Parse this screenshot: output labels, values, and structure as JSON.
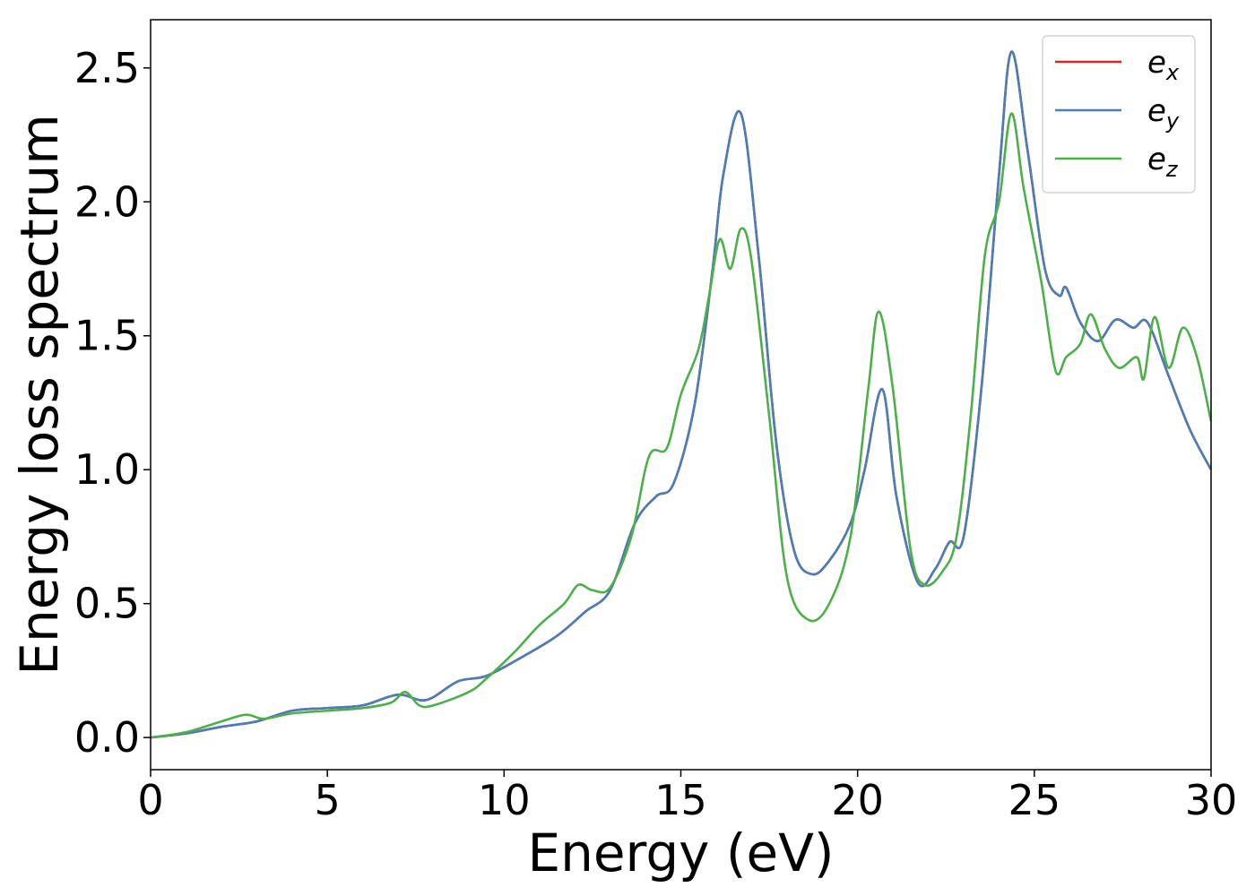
{
  "chart_data": {
    "type": "line",
    "title": "",
    "xlabel": "Energy (eV)",
    "ylabel": "Energy loss spectrum",
    "xlim": [
      0,
      30
    ],
    "ylim": [
      -0.12,
      2.68
    ],
    "xticks": [
      0,
      5,
      10,
      15,
      20,
      25,
      30
    ],
    "xtick_labels": [
      "0",
      "5",
      "10",
      "15",
      "20",
      "25",
      "30"
    ],
    "yticks": [
      0.0,
      0.5,
      1.0,
      1.5,
      2.0,
      2.5
    ],
    "ytick_labels": [
      "0.0",
      "0.5",
      "1.0",
      "1.5",
      "2.0",
      "2.5"
    ],
    "grid": false,
    "legend_position": "top-right",
    "series": [
      {
        "name": "e_x",
        "label_base": "e",
        "label_sub": "x",
        "color": "#d62728",
        "points": [
          [
            0,
            0
          ],
          [
            1,
            0.015
          ],
          [
            2,
            0.04
          ],
          [
            3,
            0.06
          ],
          [
            4,
            0.1
          ],
          [
            5,
            0.11
          ],
          [
            6,
            0.12
          ],
          [
            7,
            0.16
          ],
          [
            7.8,
            0.14
          ],
          [
            8.7,
            0.21
          ],
          [
            9.5,
            0.23
          ],
          [
            10.5,
            0.3
          ],
          [
            11.5,
            0.38
          ],
          [
            12.3,
            0.47
          ],
          [
            13,
            0.55
          ],
          [
            13.7,
            0.8
          ],
          [
            14.3,
            0.9
          ],
          [
            14.8,
            0.95
          ],
          [
            15.4,
            1.25
          ],
          [
            15.9,
            1.75
          ],
          [
            16.2,
            2.1
          ],
          [
            16.7,
            2.33
          ],
          [
            17.2,
            1.8
          ],
          [
            17.7,
            1.1
          ],
          [
            18.2,
            0.7
          ],
          [
            18.7,
            0.61
          ],
          [
            19.2,
            0.66
          ],
          [
            19.8,
            0.8
          ],
          [
            20.2,
            1.0
          ],
          [
            20.7,
            1.3
          ],
          [
            21.1,
            0.9
          ],
          [
            21.7,
            0.58
          ],
          [
            22.2,
            0.63
          ],
          [
            22.6,
            0.73
          ],
          [
            23,
            0.75
          ],
          [
            23.5,
            1.3
          ],
          [
            24,
            2.1
          ],
          [
            24.35,
            2.56
          ],
          [
            24.8,
            2.2
          ],
          [
            25.3,
            1.75
          ],
          [
            25.7,
            1.65
          ],
          [
            25.9,
            1.68
          ],
          [
            26.3,
            1.55
          ],
          [
            26.8,
            1.48
          ],
          [
            27.3,
            1.56
          ],
          [
            27.8,
            1.53
          ],
          [
            28.2,
            1.55
          ],
          [
            28.8,
            1.35
          ],
          [
            29.4,
            1.15
          ],
          [
            30,
            1.0
          ]
        ]
      },
      {
        "name": "e_y",
        "label_base": "e",
        "label_sub": "y",
        "color": "#4a7eb5",
        "points": [
          [
            0,
            0
          ],
          [
            1,
            0.015
          ],
          [
            2,
            0.04
          ],
          [
            3,
            0.06
          ],
          [
            4,
            0.1
          ],
          [
            5,
            0.11
          ],
          [
            6,
            0.12
          ],
          [
            7,
            0.16
          ],
          [
            7.8,
            0.14
          ],
          [
            8.7,
            0.21
          ],
          [
            9.5,
            0.23
          ],
          [
            10.5,
            0.3
          ],
          [
            11.5,
            0.38
          ],
          [
            12.3,
            0.47
          ],
          [
            13,
            0.55
          ],
          [
            13.7,
            0.8
          ],
          [
            14.3,
            0.9
          ],
          [
            14.8,
            0.95
          ],
          [
            15.4,
            1.25
          ],
          [
            15.9,
            1.75
          ],
          [
            16.2,
            2.1
          ],
          [
            16.7,
            2.33
          ],
          [
            17.2,
            1.8
          ],
          [
            17.7,
            1.1
          ],
          [
            18.2,
            0.7
          ],
          [
            18.7,
            0.61
          ],
          [
            19.2,
            0.66
          ],
          [
            19.8,
            0.8
          ],
          [
            20.2,
            1.0
          ],
          [
            20.7,
            1.3
          ],
          [
            21.1,
            0.9
          ],
          [
            21.7,
            0.58
          ],
          [
            22.2,
            0.63
          ],
          [
            22.6,
            0.73
          ],
          [
            23,
            0.75
          ],
          [
            23.5,
            1.3
          ],
          [
            24,
            2.1
          ],
          [
            24.35,
            2.56
          ],
          [
            24.8,
            2.2
          ],
          [
            25.3,
            1.75
          ],
          [
            25.7,
            1.65
          ],
          [
            25.9,
            1.68
          ],
          [
            26.3,
            1.55
          ],
          [
            26.8,
            1.48
          ],
          [
            27.3,
            1.56
          ],
          [
            27.8,
            1.53
          ],
          [
            28.2,
            1.55
          ],
          [
            28.8,
            1.35
          ],
          [
            29.4,
            1.15
          ],
          [
            30,
            1.0
          ]
        ]
      },
      {
        "name": "e_z",
        "label_base": "e",
        "label_sub": "z",
        "color": "#4daf4a",
        "points": [
          [
            0,
            0
          ],
          [
            1,
            0.02
          ],
          [
            2,
            0.06
          ],
          [
            2.7,
            0.085
          ],
          [
            3.2,
            0.07
          ],
          [
            4,
            0.09
          ],
          [
            5,
            0.1
          ],
          [
            6,
            0.11
          ],
          [
            6.8,
            0.13
          ],
          [
            7.2,
            0.17
          ],
          [
            7.6,
            0.12
          ],
          [
            8,
            0.12
          ],
          [
            9,
            0.17
          ],
          [
            9.5,
            0.22
          ],
          [
            10.3,
            0.32
          ],
          [
            11,
            0.42
          ],
          [
            11.7,
            0.5
          ],
          [
            12.1,
            0.57
          ],
          [
            12.5,
            0.55
          ],
          [
            13,
            0.56
          ],
          [
            13.6,
            0.75
          ],
          [
            14.1,
            1.05
          ],
          [
            14.6,
            1.08
          ],
          [
            15,
            1.28
          ],
          [
            15.5,
            1.45
          ],
          [
            15.8,
            1.65
          ],
          [
            16.1,
            1.86
          ],
          [
            16.4,
            1.75
          ],
          [
            16.7,
            1.9
          ],
          [
            17,
            1.78
          ],
          [
            17.5,
            1.2
          ],
          [
            18,
            0.6
          ],
          [
            18.6,
            0.44
          ],
          [
            19.2,
            0.5
          ],
          [
            19.8,
            0.75
          ],
          [
            20.3,
            1.3
          ],
          [
            20.6,
            1.59
          ],
          [
            21,
            1.3
          ],
          [
            21.5,
            0.7
          ],
          [
            21.9,
            0.57
          ],
          [
            22.4,
            0.62
          ],
          [
            22.8,
            0.75
          ],
          [
            23.2,
            1.2
          ],
          [
            23.6,
            1.8
          ],
          [
            24,
            2.0
          ],
          [
            24.35,
            2.33
          ],
          [
            24.7,
            2.05
          ],
          [
            25.2,
            1.7
          ],
          [
            25.6,
            1.37
          ],
          [
            25.9,
            1.42
          ],
          [
            26.3,
            1.47
          ],
          [
            26.6,
            1.58
          ],
          [
            27,
            1.45
          ],
          [
            27.4,
            1.38
          ],
          [
            27.9,
            1.42
          ],
          [
            28.1,
            1.34
          ],
          [
            28.4,
            1.57
          ],
          [
            28.8,
            1.38
          ],
          [
            29.2,
            1.53
          ],
          [
            29.6,
            1.42
          ],
          [
            30,
            1.18
          ]
        ]
      }
    ]
  }
}
